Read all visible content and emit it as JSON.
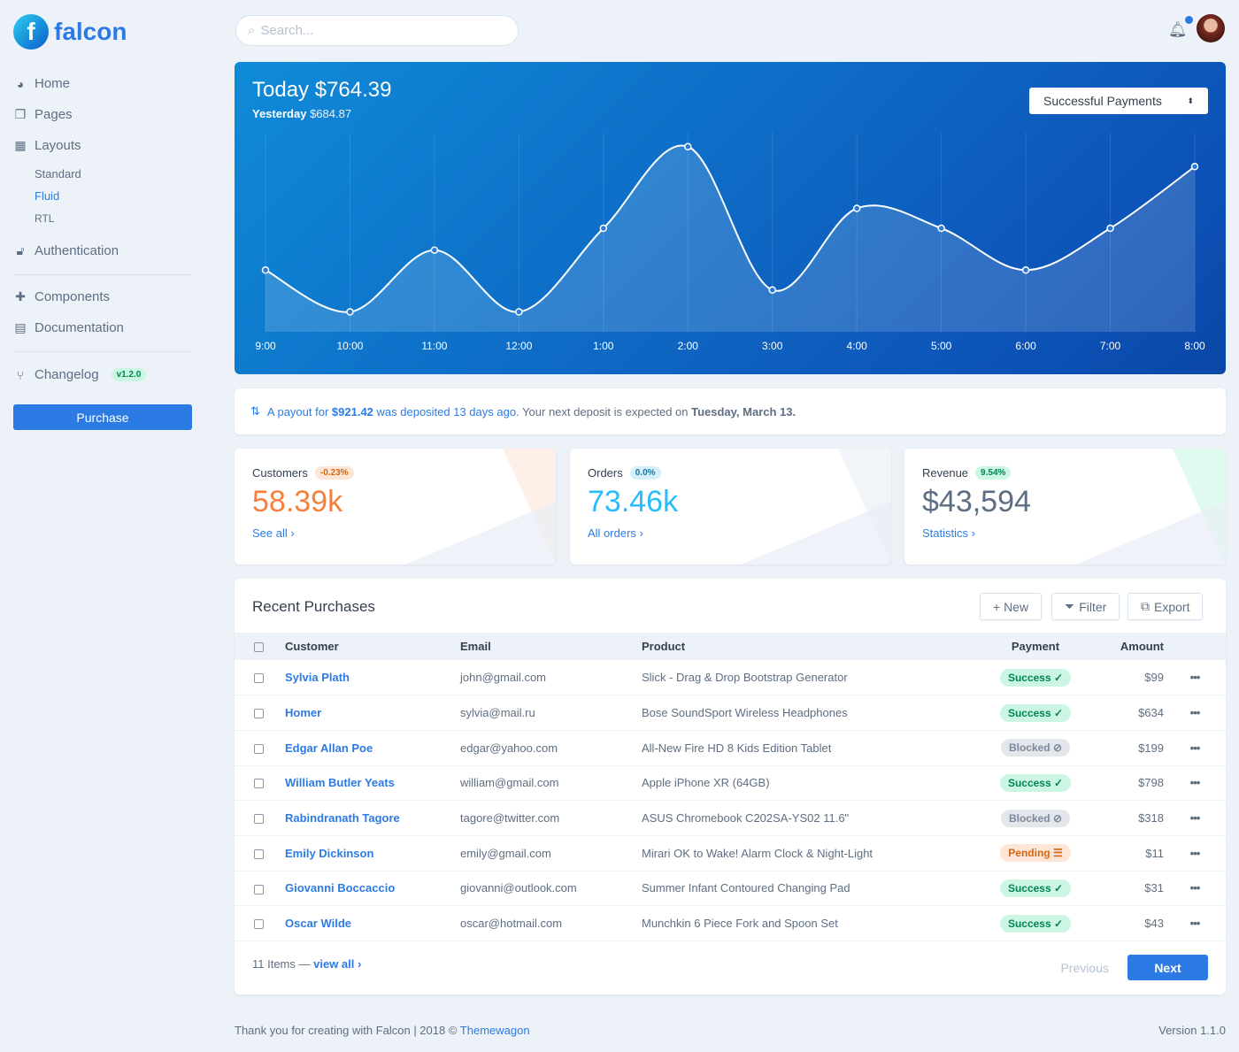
{
  "brand": {
    "name": "falcon",
    "logo_letter": "f"
  },
  "sidebar": {
    "items": [
      {
        "label": "Home",
        "icon": "pie-chart-icon"
      },
      {
        "label": "Pages",
        "icon": "copy-icon"
      },
      {
        "label": "Layouts",
        "icon": "grid-icon"
      },
      {
        "label": "Authentication",
        "icon": "unlock-icon"
      },
      {
        "label": "Components",
        "icon": "puzzle-icon"
      },
      {
        "label": "Documentation",
        "icon": "book-icon"
      },
      {
        "label": "Changelog",
        "icon": "code-branch-icon"
      }
    ],
    "layouts_sub": [
      "Standard",
      "Fluid",
      "RTL"
    ],
    "active_sub": "Fluid",
    "changelog_badge": "v1.2.0",
    "purchase_label": "Purchase"
  },
  "header": {
    "search_placeholder": "Search..."
  },
  "hero": {
    "title": "Today $764.39",
    "yesterday_label": "Yesterday",
    "yesterday_value": "$684.87",
    "select": "Successful Payments",
    "chart_data": {
      "type": "area",
      "x": [
        "9:00",
        "10:00",
        "11:00",
        "12:00",
        "1:00",
        "2:00",
        "3:00",
        "4:00",
        "5:00",
        "6:00",
        "7:00",
        "8:00"
      ],
      "values": [
        31,
        10,
        41,
        10,
        52,
        93,
        21,
        62,
        52,
        31,
        52,
        83
      ],
      "ylim": [
        0,
        100
      ],
      "grid": "vertical"
    }
  },
  "alert": {
    "pre": "A payout for ",
    "amount": "$921.42",
    "mid": " was deposited 13 days ago",
    "post": ". Your next deposit is expected on ",
    "date": "Tuesday, March 13."
  },
  "stats": [
    {
      "label": "Customers",
      "badge": "-0.23%",
      "value": "58.39k",
      "link": "See all ›",
      "color": "#f5803e",
      "badge_bg": "#fde6d8",
      "badge_fg": "#d5660e"
    },
    {
      "label": "Orders",
      "badge": "0.0%",
      "value": "73.46k",
      "link": "All orders ›",
      "color": "#27bcfd",
      "badge_bg": "#d5effb",
      "badge_fg": "#1978a2"
    },
    {
      "label": "Revenue",
      "badge": "9.54%",
      "value": "$43,594",
      "link": "Statistics ›",
      "color": "#5e6e82",
      "badge_bg": "#ccf6e4",
      "badge_fg": "#00864e"
    }
  ],
  "purchases": {
    "title": "Recent Purchases",
    "buttons": [
      "+ New",
      "Filter",
      "Export"
    ],
    "columns": [
      "Customer",
      "Email",
      "Product",
      "Payment",
      "Amount"
    ],
    "rows": [
      [
        "Sylvia Plath",
        "john@gmail.com",
        "Slick - Drag & Drop Bootstrap Generator",
        "Success",
        "$99"
      ],
      [
        "Homer",
        "sylvia@mail.ru",
        "Bose SoundSport Wireless Headphones",
        "Success",
        "$634"
      ],
      [
        "Edgar Allan Poe",
        "edgar@yahoo.com",
        "All-New Fire HD 8 Kids Edition Tablet",
        "Blocked",
        "$199"
      ],
      [
        "William Butler Yeats",
        "william@gmail.com",
        "Apple iPhone XR (64GB)",
        "Success",
        "$798"
      ],
      [
        "Rabindranath Tagore",
        "tagore@twitter.com",
        "ASUS Chromebook C202SA-YS02 11.6\"",
        "Blocked",
        "$318"
      ],
      [
        "Emily Dickinson",
        "emily@gmail.com",
        "Mirari OK to Wake! Alarm Clock & Night-Light",
        "Pending",
        "$11"
      ],
      [
        "Giovanni Boccaccio",
        "giovanni@outlook.com",
        "Summer Infant Contoured Changing Pad",
        "Success",
        "$31"
      ],
      [
        "Oscar Wilde",
        "oscar@hotmail.com",
        "Munchkin 6 Piece Fork and Spoon Set",
        "Success",
        "$43"
      ]
    ],
    "count": "11 Items —",
    "view_all": "view all ›",
    "previous": "Previous",
    "next": "Next"
  },
  "footer": {
    "text": "Thank you for creating with Falcon | 2018 © ",
    "link": "Themewagon",
    "version": "Version 1.1.0"
  }
}
